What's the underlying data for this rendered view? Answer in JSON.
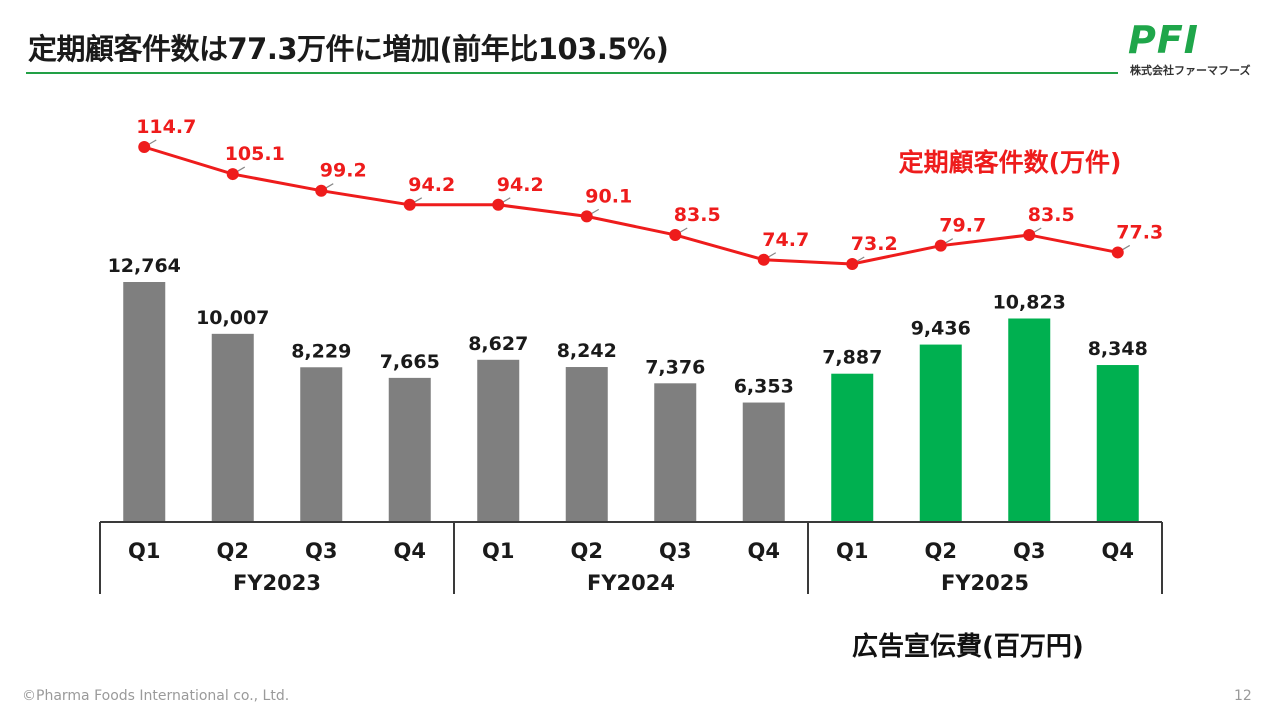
{
  "page": {
    "title": "定期顧客件数は77.3万件に増加(前年比103.5%)",
    "logo_mark": "PFI",
    "logo_company": "株式会社ファーマフーズ",
    "footer": "©Pharma Foods International co., Ltd.",
    "page_number": "12"
  },
  "colors": {
    "accent": "#22a046",
    "bar_past": "#7f7f7f",
    "bar_current": "#00b050",
    "line": "#ee1c1c"
  },
  "chart_data": {
    "type": "bar+line",
    "categories": [
      "Q1",
      "Q2",
      "Q3",
      "Q4",
      "Q1",
      "Q2",
      "Q3",
      "Q4",
      "Q1",
      "Q2",
      "Q3",
      "Q4"
    ],
    "groups": [
      {
        "label": "FY2023",
        "count": 4
      },
      {
        "label": "FY2024",
        "count": 4
      },
      {
        "label": "FY2025",
        "count": 4
      }
    ],
    "series": [
      {
        "name": "広告宣伝費(百万円)",
        "kind": "bar",
        "values": [
          12764,
          10007,
          8229,
          7665,
          8627,
          8242,
          7376,
          6353,
          7887,
          9436,
          10823,
          8348
        ],
        "labels": [
          "12,764",
          "10,007",
          "8,229",
          "7,665",
          "8,627",
          "8,242",
          "7,376",
          "6,353",
          "7,887",
          "9,436",
          "10,823",
          "8,348"
        ]
      },
      {
        "name": "定期顧客件数(万件)",
        "kind": "line",
        "values": [
          114.7,
          105.1,
          99.2,
          94.2,
          94.2,
          90.1,
          83.5,
          74.7,
          73.2,
          79.7,
          83.5,
          77.3
        ],
        "labels": [
          "114.7",
          "105.1",
          "99.2",
          "94.2",
          "94.2",
          "90.1",
          "83.5",
          "74.7",
          "73.2",
          "79.7",
          "83.5",
          "77.3"
        ]
      }
    ],
    "bar_legend": "広告宣伝費(百万円)",
    "line_legend": "定期顧客件数(万件)",
    "bar_ylim": [
      0,
      13500
    ],
    "line_ylim": [
      70,
      116
    ]
  }
}
